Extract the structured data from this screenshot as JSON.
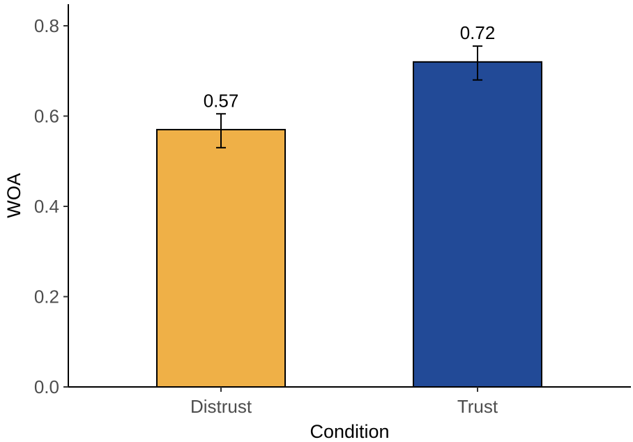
{
  "chart_data": {
    "type": "bar",
    "title": "",
    "xlabel": "Condition",
    "ylabel": "WOA",
    "categories": [
      "Distrust",
      "Trust"
    ],
    "values": [
      0.57,
      0.72
    ],
    "value_labels": [
      "0.57",
      "0.72"
    ],
    "error": {
      "lower": [
        0.53,
        0.68
      ],
      "upper": [
        0.605,
        0.755
      ]
    },
    "colors": [
      "#EFB047",
      "#224A97"
    ],
    "ylim": [
      0,
      0.85
    ],
    "yticks": [
      0.0,
      0.2,
      0.4,
      0.6,
      0.8
    ],
    "ytick_labels": [
      "0.0",
      "0.2",
      "0.4",
      "0.6",
      "0.8"
    ],
    "grid": false,
    "legend": "none"
  }
}
